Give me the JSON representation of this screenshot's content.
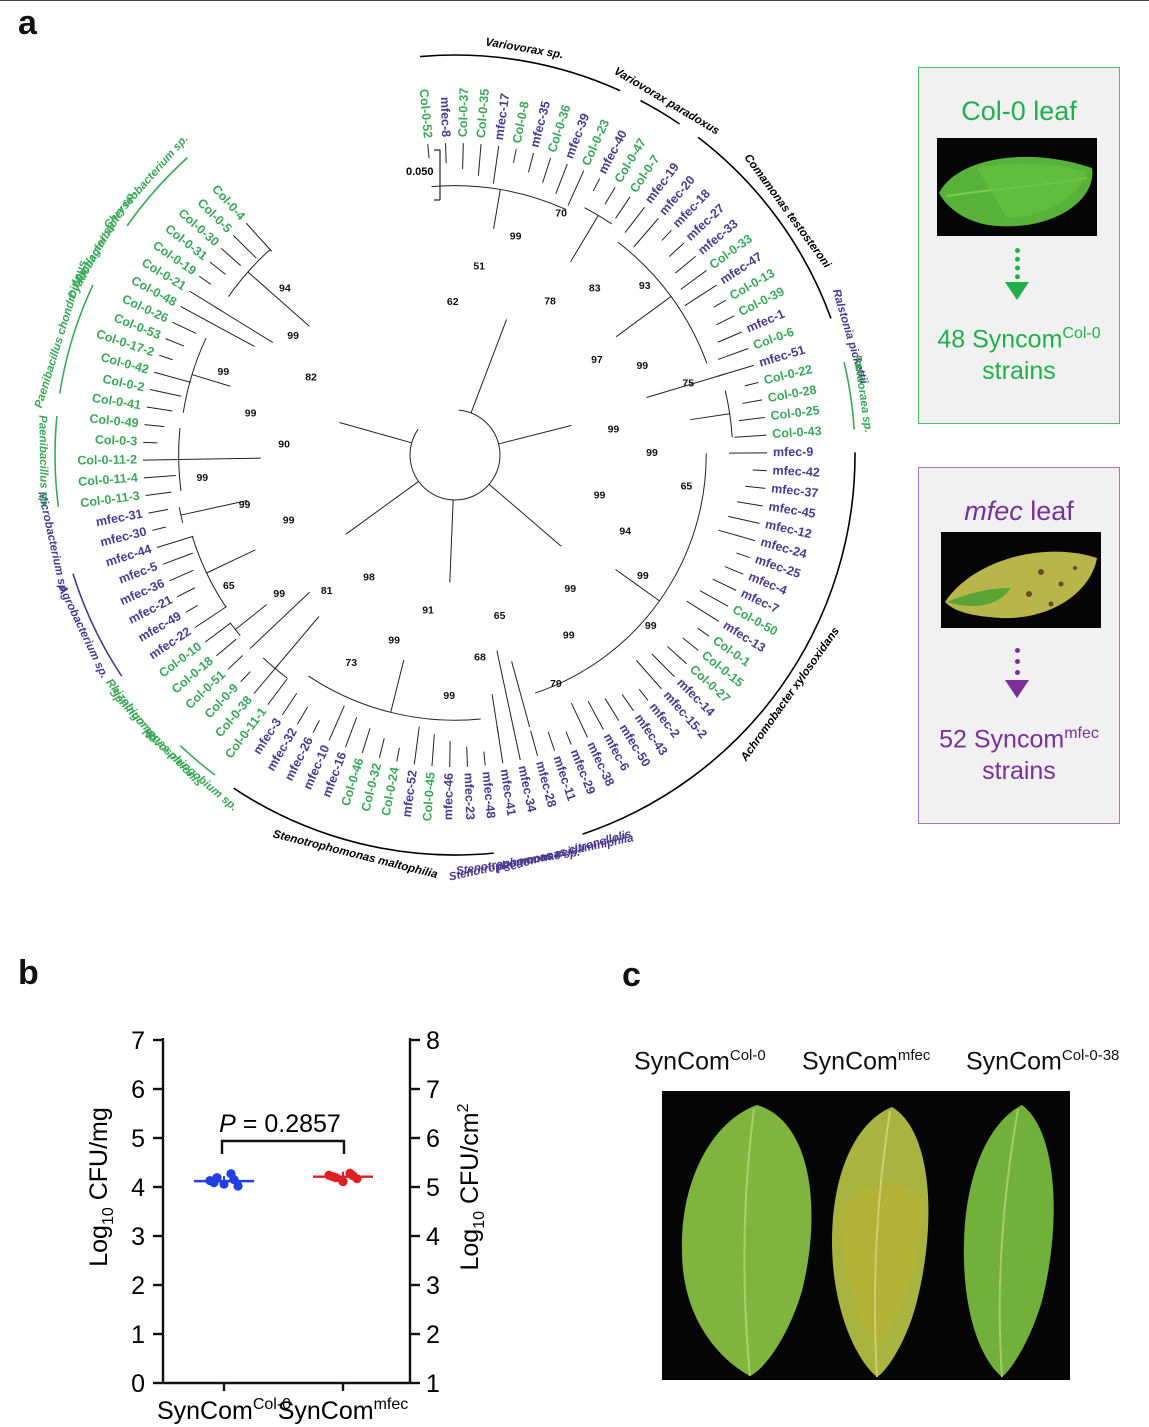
{
  "figure": {
    "top_rule": true,
    "panels": [
      "a",
      "b",
      "c"
    ]
  },
  "panel_a": {
    "scale_bar": "0.050",
    "colors": {
      "col0": "#3aa857",
      "mfec": "#4a3a8f",
      "branch": "#222222"
    },
    "leaves": [
      {
        "id": "Col-0-52",
        "g": "col0"
      },
      {
        "id": "mfec-8",
        "g": "mfec"
      },
      {
        "id": "Col-0-37",
        "g": "col0"
      },
      {
        "id": "Col-0-35",
        "g": "col0"
      },
      {
        "id": "mfec-17",
        "g": "mfec"
      },
      {
        "id": "Col-0-8",
        "g": "col0"
      },
      {
        "id": "mfec-35",
        "g": "mfec"
      },
      {
        "id": "Col-0-36",
        "g": "col0"
      },
      {
        "id": "mfec-39",
        "g": "mfec"
      },
      {
        "id": "Col-0-23",
        "g": "col0"
      },
      {
        "id": "mfec-40",
        "g": "mfec"
      },
      {
        "id": "Col-0-47",
        "g": "col0"
      },
      {
        "id": "Col-0-7",
        "g": "col0"
      },
      {
        "id": "mfec-19",
        "g": "mfec"
      },
      {
        "id": "mfec-20",
        "g": "mfec"
      },
      {
        "id": "mfec-18",
        "g": "mfec"
      },
      {
        "id": "mfec-27",
        "g": "mfec"
      },
      {
        "id": "mfec-33",
        "g": "mfec"
      },
      {
        "id": "Col-0-33",
        "g": "col0"
      },
      {
        "id": "mfec-47",
        "g": "mfec"
      },
      {
        "id": "Col-0-13",
        "g": "col0"
      },
      {
        "id": "Col-0-39",
        "g": "col0"
      },
      {
        "id": "mfec-1",
        "g": "mfec"
      },
      {
        "id": "Col-0-6",
        "g": "col0"
      },
      {
        "id": "mfec-51",
        "g": "mfec"
      },
      {
        "id": "Col-0-22",
        "g": "col0"
      },
      {
        "id": "Col-0-28",
        "g": "col0"
      },
      {
        "id": "Col-0-25",
        "g": "col0"
      },
      {
        "id": "Col-0-43",
        "g": "col0"
      },
      {
        "id": "mfec-9",
        "g": "mfec"
      },
      {
        "id": "mfec-42",
        "g": "mfec"
      },
      {
        "id": "mfec-37",
        "g": "mfec"
      },
      {
        "id": "mfec-45",
        "g": "mfec"
      },
      {
        "id": "mfec-12",
        "g": "mfec"
      },
      {
        "id": "mfec-24",
        "g": "mfec"
      },
      {
        "id": "mfec-25",
        "g": "mfec"
      },
      {
        "id": "mfec-4",
        "g": "mfec"
      },
      {
        "id": "mfec-7",
        "g": "mfec"
      },
      {
        "id": "Col-0-50",
        "g": "col0"
      },
      {
        "id": "mfec-13",
        "g": "mfec"
      },
      {
        "id": "Col-0-1",
        "g": "col0"
      },
      {
        "id": "Col-0-15",
        "g": "col0"
      },
      {
        "id": "Col-0-27",
        "g": "col0"
      },
      {
        "id": "mfec-14",
        "g": "mfec"
      },
      {
        "id": "mfec-15-2",
        "g": "mfec"
      },
      {
        "id": "mfec-2",
        "g": "mfec"
      },
      {
        "id": "mfec-43",
        "g": "mfec"
      },
      {
        "id": "mfec-50",
        "g": "mfec"
      },
      {
        "id": "mfec-6",
        "g": "mfec"
      },
      {
        "id": "mfec-38",
        "g": "mfec"
      },
      {
        "id": "mfec-29",
        "g": "mfec"
      },
      {
        "id": "mfec-11",
        "g": "mfec"
      },
      {
        "id": "mfec-28",
        "g": "mfec"
      },
      {
        "id": "mfec-34",
        "g": "mfec"
      },
      {
        "id": "mfec-41",
        "g": "mfec"
      },
      {
        "id": "mfec-48",
        "g": "mfec"
      },
      {
        "id": "mfec-23",
        "g": "mfec"
      },
      {
        "id": "mfec-46",
        "g": "mfec"
      },
      {
        "id": "Col-0-45",
        "g": "col0"
      },
      {
        "id": "mfec-52",
        "g": "mfec"
      },
      {
        "id": "Col-0-24",
        "g": "col0"
      },
      {
        "id": "Col-0-32",
        "g": "col0"
      },
      {
        "id": "Col-0-46",
        "g": "col0"
      },
      {
        "id": "mfec-16",
        "g": "mfec"
      },
      {
        "id": "mfec-10",
        "g": "mfec"
      },
      {
        "id": "mfec-26",
        "g": "mfec"
      },
      {
        "id": "mfec-32",
        "g": "mfec"
      },
      {
        "id": "mfec-3",
        "g": "mfec"
      },
      {
        "id": "Col-0-11-1",
        "g": "col0"
      },
      {
        "id": "Col-0-38",
        "g": "col0"
      },
      {
        "id": "Col-0-9",
        "g": "col0"
      },
      {
        "id": "Col-0-51",
        "g": "col0"
      },
      {
        "id": "Col-0-18",
        "g": "col0"
      },
      {
        "id": "Col-0-10",
        "g": "col0"
      },
      {
        "id": "mfec-22",
        "g": "mfec"
      },
      {
        "id": "mfec-49",
        "g": "mfec"
      },
      {
        "id": "mfec-21",
        "g": "mfec"
      },
      {
        "id": "mfec-36",
        "g": "mfec"
      },
      {
        "id": "mfec-5",
        "g": "mfec"
      },
      {
        "id": "mfec-44",
        "g": "mfec"
      },
      {
        "id": "mfec-30",
        "g": "mfec"
      },
      {
        "id": "mfec-31",
        "g": "mfec"
      },
      {
        "id": "Col-0-11-3",
        "g": "col0"
      },
      {
        "id": "Col-0-11-4",
        "g": "col0"
      },
      {
        "id": "Col-0-11-2",
        "g": "col0"
      },
      {
        "id": "Col-0-3",
        "g": "col0"
      },
      {
        "id": "Col-0-49",
        "g": "col0"
      },
      {
        "id": "Col-0-41",
        "g": "col0"
      },
      {
        "id": "Col-0-2",
        "g": "col0"
      },
      {
        "id": "Col-0-42",
        "g": "col0"
      },
      {
        "id": "Col-0-17-2",
        "g": "col0"
      },
      {
        "id": "Col-0-53",
        "g": "col0"
      },
      {
        "id": "Col-0-26",
        "g": "col0"
      },
      {
        "id": "Col-0-48",
        "g": "col0"
      },
      {
        "id": "Col-0-21",
        "g": "col0"
      },
      {
        "id": "Col-0-19",
        "g": "col0"
      },
      {
        "id": "Col-0-31",
        "g": "col0"
      },
      {
        "id": "Col-0-30",
        "g": "col0"
      },
      {
        "id": "Col-0-5",
        "g": "col0"
      },
      {
        "id": "Col-0-4",
        "g": "col0"
      }
    ],
    "clades": [
      {
        "name": "Variovorax sp.",
        "from": 0,
        "to": 9,
        "g": "black"
      },
      {
        "name": "Variovorax paradoxus",
        "from": 10,
        "to": 12,
        "g": "black"
      },
      {
        "name": "Comamonas testosteroni",
        "from": 13,
        "to": 23,
        "g": "black"
      },
      {
        "name": "Ralstonia pickettii",
        "from": 24,
        "to": 24,
        "g": "mfec"
      },
      {
        "name": "Pandoraea sp.",
        "from": 25,
        "to": 28,
        "g": "col0"
      },
      {
        "name": "Achromobacter xylosoxidans",
        "from": 29,
        "to": 51,
        "g": "black"
      },
      {
        "name": "Psedomonas citronellolis",
        "from": 52,
        "to": 52,
        "g": "mfec"
      },
      {
        "name": "Stenotrophomonas acidaminiphila",
        "from": 53,
        "to": 53,
        "g": "mfec"
      },
      {
        "name": "Stenotrophomonas sp.",
        "from": 54,
        "to": 54,
        "g": "mfec"
      },
      {
        "name": "Stenotrophomonas maltophilia",
        "from": 55,
        "to": 67,
        "g": "black"
      },
      {
        "name": "Novosphingobium sp.",
        "from": 68,
        "to": 70,
        "g": "col0"
      },
      {
        "name": "Sphingomonas melonis",
        "from": 71,
        "to": 71,
        "g": "col0"
      },
      {
        "name": "Rhizobium sp.",
        "from": 72,
        "to": 73,
        "g": "col0"
      },
      {
        "name": "Agrobacterium sp.",
        "from": 74,
        "to": 79,
        "g": "mfec"
      },
      {
        "name": "Microbacterium sp.",
        "from": 80,
        "to": 81,
        "g": "mfec"
      },
      {
        "name": "Paenibacillus sp.",
        "from": 82,
        "to": 86,
        "g": "col0"
      },
      {
        "name": "Paenibacillus chondroitinus",
        "from": 87,
        "to": 92,
        "g": "col0"
      },
      {
        "name": "Dyadobacter sp.",
        "from": 93,
        "to": 93,
        "g": "col0"
      },
      {
        "name": "Mucilaginibacter sp.",
        "from": 94,
        "to": 94,
        "g": "col0"
      },
      {
        "name": "Chryseobacterium sp.",
        "from": 95,
        "to": 99,
        "g": "col0"
      }
    ],
    "bootstrap": [
      "62",
      "51",
      "99",
      "70",
      "78",
      "83",
      "93",
      "97",
      "99",
      "75",
      "99",
      "99",
      "65",
      "99",
      "94",
      "99",
      "99",
      "99",
      "99",
      "79",
      "65",
      "68",
      "99",
      "91",
      "99",
      "73",
      "98",
      "81",
      "99",
      "65",
      "99",
      "99",
      "99",
      "90",
      "99",
      "99",
      "82",
      "99",
      "94"
    ],
    "boxes": [
      {
        "title": "Col-0 leaf",
        "title_italic": false,
        "count_prefix": "48 Syncom",
        "count_sup": "Col-0",
        "count_suffix": "strains",
        "color": "#1fb04b"
      },
      {
        "title": "mfec",
        "title_rest": " leaf",
        "title_italic": true,
        "count_prefix": "52 Syncom",
        "count_sup": "mfec",
        "count_suffix": "strains",
        "color": "#7a2f9a"
      }
    ]
  },
  "panel_b": {
    "chart_data": {
      "type": "scatter",
      "ylabel_left_pre": "Log",
      "ylabel_left_sub": "10",
      "ylabel_left_post": " CFU/mg",
      "ylabel_right_pre": "Log",
      "ylabel_right_sub": "10",
      "ylabel_right_post": " CFU/cm",
      "ylabel_right_sup": "2",
      "ylim_left": [
        0,
        7
      ],
      "ylim_right": [
        1,
        8
      ],
      "ticks_left": [
        "0",
        "1",
        "2",
        "3",
        "4",
        "5",
        "6",
        "7"
      ],
      "ticks_right": [
        "1",
        "2",
        "3",
        "4",
        "5",
        "6",
        "7",
        "8"
      ],
      "annotation_pre": "P",
      "annotation_post": " = 0.2857",
      "series": [
        {
          "label_pre": "SynCom",
          "label_sup": "Col-0",
          "color": "#1f3fe0",
          "mean": 4.12,
          "values": [
            4.13,
            4.19,
            4.06,
            4.27,
            4.02,
            4.09,
            4.15
          ]
        },
        {
          "label_pre": "SynCom",
          "label_sup": "mfec",
          "color": "#e02020",
          "mean": 4.21,
          "values": [
            4.24,
            4.19,
            4.11,
            4.28,
            4.17,
            4.21,
            4.23
          ]
        }
      ]
    }
  },
  "panel_c": {
    "labels": [
      {
        "pre": "SynCom",
        "sup": "Col-0"
      },
      {
        "pre": "SynCom",
        "sup": "mfec"
      },
      {
        "pre": "SynCom",
        "sup": "Col-0-38"
      }
    ]
  }
}
